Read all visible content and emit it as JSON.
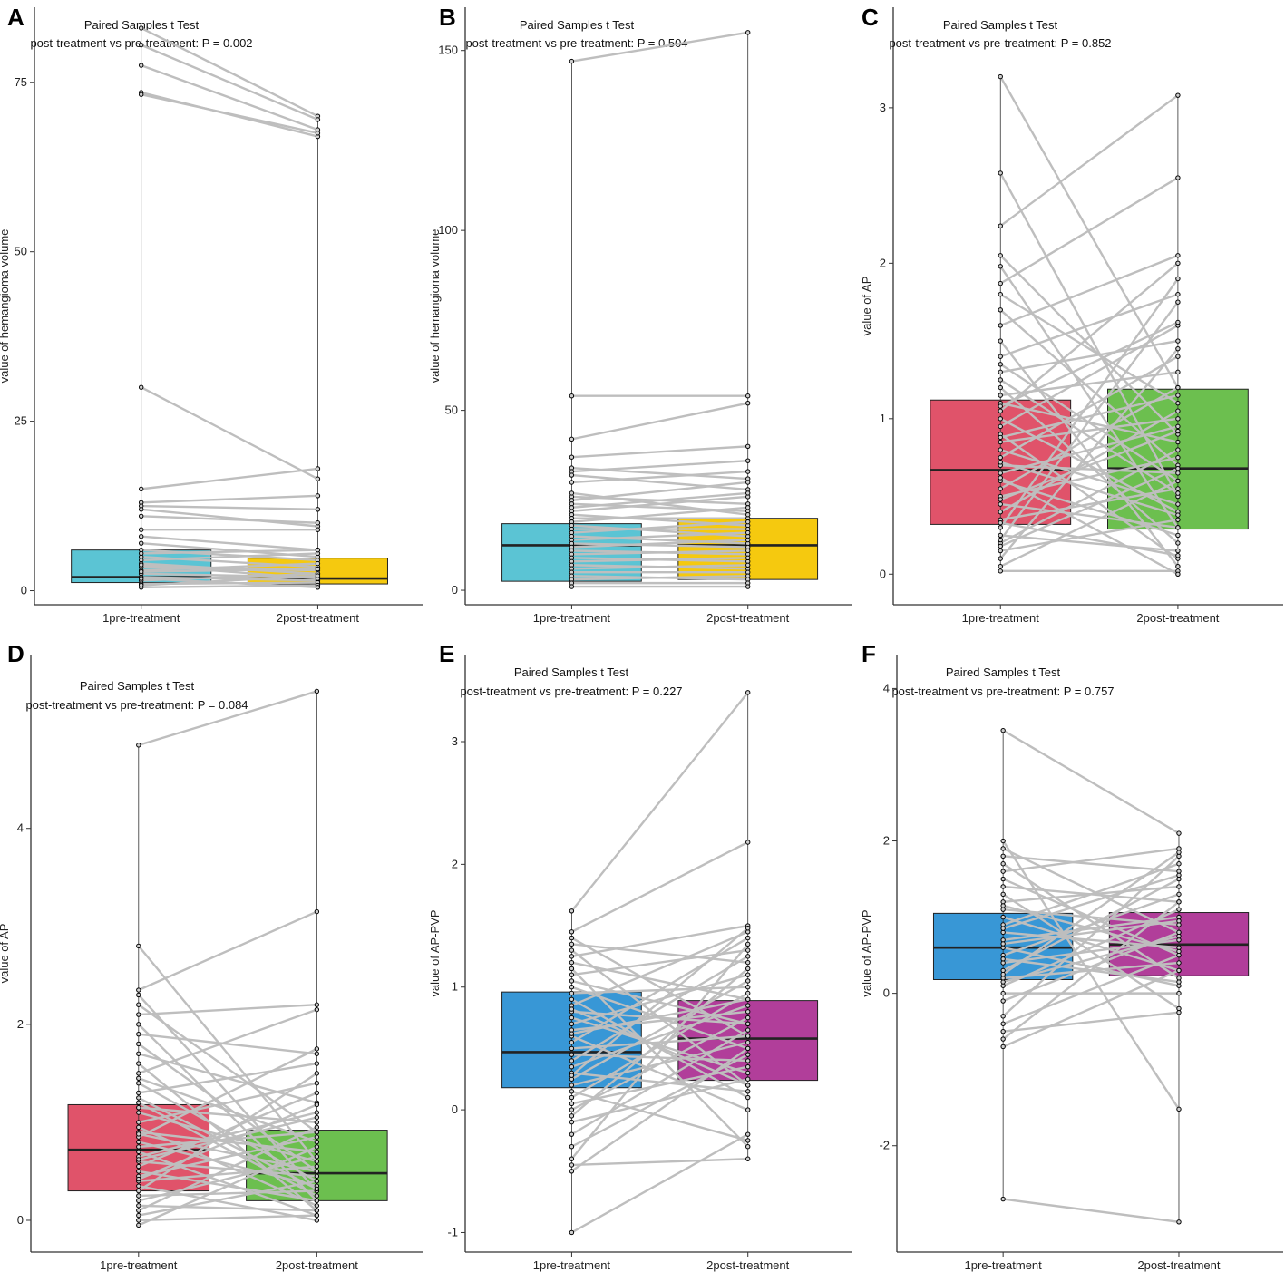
{
  "figure": {
    "colors": {
      "pair_line": "#bebebe",
      "point_stroke": "#000000",
      "box_stroke": "#222222",
      "cyan": "#5bc4d4",
      "yellow": "#f5c90f",
      "red": "#e0536a",
      "green": "#6cbf4f",
      "blue": "#3897d6",
      "magenta": "#b13e9a"
    }
  },
  "chart_data": [
    {
      "panel": "A",
      "type": "boxplot-paired",
      "ylabel": "value of hemangioma volume",
      "categories": [
        "1pre-treatment",
        "2post-treatment"
      ],
      "ylim": [
        -1,
        85
      ],
      "yticks": [
        0,
        25,
        50,
        75
      ],
      "annotation": {
        "title": "Paired Samples t Test",
        "text": "post-treatment vs pre-treatment: P = 0.002"
      },
      "boxes": [
        {
          "q1": 1.2,
          "median": 2.0,
          "q3": 6.0,
          "color": "cyan"
        },
        {
          "q1": 1.0,
          "median": 1.8,
          "q3": 4.8,
          "color": "yellow"
        }
      ],
      "pairs": [
        [
          83,
          70
        ],
        [
          80.5,
          69.5
        ],
        [
          77.5,
          68
        ],
        [
          73.5,
          67
        ],
        [
          73.2,
          67.5
        ],
        [
          30,
          16.5
        ],
        [
          15,
          18
        ],
        [
          13,
          14
        ],
        [
          12.5,
          12
        ],
        [
          12,
          9.5
        ],
        [
          11,
          10
        ],
        [
          9,
          9
        ],
        [
          8,
          6
        ],
        [
          7,
          5
        ],
        [
          6,
          4.5
        ],
        [
          5,
          3.5
        ],
        [
          4.5,
          5.5
        ],
        [
          4,
          2.5
        ],
        [
          3.5,
          3
        ],
        [
          3,
          4
        ],
        [
          2.5,
          2
        ],
        [
          2,
          1.5
        ],
        [
          1.5,
          2.5
        ],
        [
          1,
          1.2
        ],
        [
          0.5,
          0.8
        ],
        [
          5.5,
          6
        ],
        [
          3.8,
          1.8
        ],
        [
          2.8,
          3.2
        ],
        [
          1.8,
          0.5
        ],
        [
          0.8,
          2.2
        ]
      ]
    },
    {
      "panel": "B",
      "type": "boxplot-paired",
      "ylabel": "value of hemangioma volume",
      "categories": [
        "1pre-treatment",
        "2post-treatment"
      ],
      "ylim": [
        -2,
        160
      ],
      "yticks": [
        0,
        50,
        100,
        150
      ],
      "annotation": {
        "title": "Paired Samples t Test",
        "text": "post-treatment vs pre-treatment: P = 0.504"
      },
      "boxes": [
        {
          "q1": 2.5,
          "median": 12.5,
          "q3": 18.5,
          "color": "cyan"
        },
        {
          "q1": 3,
          "median": 12.5,
          "q3": 20,
          "color": "yellow"
        }
      ],
      "pairs": [
        [
          147,
          155
        ],
        [
          54,
          54
        ],
        [
          42,
          52
        ],
        [
          37,
          40
        ],
        [
          34,
          31
        ],
        [
          33,
          36
        ],
        [
          32,
          28
        ],
        [
          30,
          33
        ],
        [
          26,
          24
        ],
        [
          25,
          30
        ],
        [
          24,
          22
        ],
        [
          22,
          26
        ],
        [
          21,
          18
        ],
        [
          20,
          20
        ],
        [
          19,
          23
        ],
        [
          18,
          15
        ],
        [
          17,
          17
        ],
        [
          16,
          19
        ],
        [
          15,
          13
        ],
        [
          14,
          16
        ],
        [
          13,
          12
        ],
        [
          12,
          14
        ],
        [
          11,
          10
        ],
        [
          10,
          11
        ],
        [
          9,
          8
        ],
        [
          8,
          9
        ],
        [
          7,
          6
        ],
        [
          6,
          7
        ],
        [
          5,
          5
        ],
        [
          4,
          3
        ],
        [
          3,
          4
        ],
        [
          2,
          2
        ],
        [
          1,
          1
        ],
        [
          23,
          27
        ],
        [
          27,
          21
        ]
      ]
    },
    {
      "panel": "C",
      "type": "boxplot-paired",
      "ylabel": "value of AP",
      "categories": [
        "1pre-treatment",
        "2post-treatment"
      ],
      "ylim": [
        -0.15,
        3.6
      ],
      "yticks": [
        0,
        1,
        2,
        3
      ],
      "annotation": {
        "title": "Paired Samples t Test",
        "text": "post-treatment vs pre-treatment: P = 0.852"
      },
      "boxes": [
        {
          "q1": 0.32,
          "median": 0.67,
          "q3": 1.12,
          "color": "red"
        },
        {
          "q1": 0.29,
          "median": 0.68,
          "q3": 1.19,
          "color": "green"
        }
      ],
      "pairs": [
        [
          3.2,
          1.2
        ],
        [
          2.58,
          0.5
        ],
        [
          2.24,
          3.08
        ],
        [
          2.05,
          0.9
        ],
        [
          1.98,
          0.3
        ],
        [
          1.87,
          2.55
        ],
        [
          1.8,
          1.1
        ],
        [
          1.7,
          0.7
        ],
        [
          1.6,
          2.05
        ],
        [
          1.5,
          0.05
        ],
        [
          1.4,
          1.8
        ],
        [
          1.35,
          0.6
        ],
        [
          1.3,
          1.5
        ],
        [
          1.2,
          0.2
        ],
        [
          1.15,
          1.3
        ],
        [
          1.1,
          0.85
        ],
        [
          1.05,
          2.0
        ],
        [
          1.0,
          0.4
        ],
        [
          0.95,
          1.6
        ],
        [
          0.9,
          0.1
        ],
        [
          0.85,
          1.0
        ],
        [
          0.8,
          0.45
        ],
        [
          0.75,
          1.4
        ],
        [
          0.7,
          0.65
        ],
        [
          0.65,
          0.95
        ],
        [
          0.6,
          0.25
        ],
        [
          0.55,
          1.2
        ],
        [
          0.5,
          0.75
        ],
        [
          0.45,
          0.3
        ],
        [
          0.4,
          1.05
        ],
        [
          0.35,
          0.55
        ],
        [
          0.3,
          1.9
        ],
        [
          0.25,
          0.15
        ],
        [
          0.2,
          0.8
        ],
        [
          0.15,
          0.35
        ],
        [
          0.1,
          1.45
        ],
        [
          0.05,
          0.6
        ],
        [
          0.02,
          0.02
        ],
        [
          0.22,
          1.75
        ],
        [
          0.62,
          0.0
        ],
        [
          1.25,
          0.52
        ],
        [
          0.88,
          1.15
        ],
        [
          0.48,
          0.92
        ],
        [
          0.72,
          0.38
        ],
        [
          1.08,
          1.62
        ],
        [
          0.33,
          0.12
        ],
        [
          0.18,
          0.68
        ]
      ]
    },
    {
      "panel": "D",
      "type": "boxplot-paired",
      "ylabel": "value of AP",
      "categories": [
        "1pre-treatment",
        "2post-treatment"
      ],
      "ylim": [
        -0.25,
        5.7
      ],
      "yticks": [
        0,
        2,
        4
      ],
      "annotation": {
        "title": "Paired Samples t Test",
        "text": "post-treatment vs pre-treatment: P = 0.084"
      },
      "boxes": [
        {
          "q1": 0.3,
          "median": 0.72,
          "q3": 1.18,
          "color": "red"
        },
        {
          "q1": 0.2,
          "median": 0.48,
          "q3": 0.92,
          "color": "green"
        }
      ],
      "pairs": [
        [
          4.85,
          5.4
        ],
        [
          2.8,
          0.6
        ],
        [
          2.35,
          3.15
        ],
        [
          2.3,
          0.3
        ],
        [
          2.2,
          0.9
        ],
        [
          2.1,
          2.2
        ],
        [
          2.0,
          0.2
        ],
        [
          1.9,
          1.7
        ],
        [
          1.8,
          0.5
        ],
        [
          1.7,
          1.2
        ],
        [
          1.6,
          0.1
        ],
        [
          1.5,
          2.15
        ],
        [
          1.45,
          0.8
        ],
        [
          1.4,
          0.4
        ],
        [
          1.3,
          1.6
        ],
        [
          1.2,
          0.25
        ],
        [
          1.15,
          1.0
        ],
        [
          1.1,
          0.6
        ],
        [
          1.0,
          1.4
        ],
        [
          0.95,
          0.15
        ],
        [
          0.9,
          0.7
        ],
        [
          0.85,
          1.75
        ],
        [
          0.8,
          0.35
        ],
        [
          0.75,
          0.9
        ],
        [
          0.7,
          0.05
        ],
        [
          0.65,
          1.1
        ],
        [
          0.6,
          0.45
        ],
        [
          0.55,
          1.3
        ],
        [
          0.5,
          0.2
        ],
        [
          0.45,
          0.85
        ],
        [
          0.4,
          0.55
        ],
        [
          0.35,
          0.0
        ],
        [
          0.3,
          1.5
        ],
        [
          0.25,
          0.3
        ],
        [
          0.2,
          0.65
        ],
        [
          0.15,
          0.1
        ],
        [
          0.1,
          0.95
        ],
        [
          0.05,
          0.4
        ],
        [
          0.0,
          0.05
        ],
        [
          -0.05,
          0.75
        ],
        [
          0.62,
          1.05
        ],
        [
          1.25,
          0.32
        ],
        [
          0.42,
          1.18
        ],
        [
          0.88,
          0.5
        ]
      ]
    },
    {
      "panel": "E",
      "type": "boxplot-paired",
      "ylabel": "value of AP-PVP",
      "categories": [
        "1pre-treatment",
        "2post-treatment"
      ],
      "ylim": [
        -1.1,
        3.65
      ],
      "yticks": [
        -1,
        0,
        1,
        2,
        3
      ],
      "annotation": {
        "title": "Paired Samples t Test",
        "text": "post-treatment vs pre-treatment: P = 0.227"
      },
      "boxes": [
        {
          "q1": 0.18,
          "median": 0.47,
          "q3": 0.96,
          "color": "blue"
        },
        {
          "q1": 0.24,
          "median": 0.58,
          "q3": 0.89,
          "color": "magenta"
        }
      ],
      "pairs": [
        [
          1.62,
          3.4
        ],
        [
          1.45,
          2.18
        ],
        [
          1.4,
          0.6
        ],
        [
          1.35,
          1.2
        ],
        [
          1.3,
          0.2
        ],
        [
          1.25,
          1.5
        ],
        [
          1.2,
          0.9
        ],
        [
          1.15,
          -0.3
        ],
        [
          1.1,
          1.3
        ],
        [
          1.0,
          0.5
        ],
        [
          0.95,
          1.0
        ],
        [
          0.9,
          0.1
        ],
        [
          0.85,
          1.45
        ],
        [
          0.8,
          0.7
        ],
        [
          0.75,
          0.3
        ],
        [
          0.7,
          1.1
        ],
        [
          0.65,
          0.8
        ],
        [
          0.6,
          0.0
        ],
        [
          0.55,
          1.4
        ],
        [
          0.5,
          0.6
        ],
        [
          0.45,
          0.4
        ],
        [
          0.4,
          1.25
        ],
        [
          0.35,
          0.85
        ],
        [
          0.3,
          0.15
        ],
        [
          0.25,
          1.05
        ],
        [
          0.2,
          0.55
        ],
        [
          0.15,
          -0.25
        ],
        [
          0.1,
          0.95
        ],
        [
          0.05,
          0.35
        ],
        [
          0.0,
          0.75
        ],
        [
          -0.05,
          1.15
        ],
        [
          -0.1,
          0.25
        ],
        [
          -0.2,
          0.65
        ],
        [
          -0.3,
          0.45
        ],
        [
          -0.4,
          1.35
        ],
        [
          -0.45,
          -0.4
        ],
        [
          -0.5,
          0.5
        ],
        [
          -1.0,
          -0.2
        ],
        [
          0.62,
          0.9
        ],
        [
          0.82,
          0.2
        ],
        [
          1.05,
          0.7
        ],
        [
          0.28,
          1.48
        ]
      ]
    },
    {
      "panel": "F",
      "type": "boxplot-paired",
      "ylabel": "value of AP-PVP",
      "categories": [
        "1pre-treatment",
        "2post-treatment"
      ],
      "ylim": [
        -3.3,
        4.35
      ],
      "yticks": [
        -2,
        0,
        2,
        4
      ],
      "annotation": {
        "title": "Paired Samples t Test",
        "text": "post-treatment vs pre-treatment: P = 0.757"
      },
      "boxes": [
        {
          "q1": 0.18,
          "median": 0.6,
          "q3": 1.05,
          "color": "blue"
        },
        {
          "q1": 0.23,
          "median": 0.64,
          "q3": 1.06,
          "color": "magenta"
        }
      ],
      "pairs": [
        [
          3.45,
          2.1
        ],
        [
          2.0,
          -1.52
        ],
        [
          1.9,
          0.8
        ],
        [
          1.8,
          1.6
        ],
        [
          1.7,
          0.2
        ],
        [
          1.6,
          1.9
        ],
        [
          1.5,
          0.5
        ],
        [
          1.4,
          1.2
        ],
        [
          1.3,
          -0.2
        ],
        [
          1.2,
          1.4
        ],
        [
          1.1,
          0.9
        ],
        [
          1.0,
          0.3
        ],
        [
          0.9,
          1.7
        ],
        [
          0.8,
          0.6
        ],
        [
          0.7,
          1.0
        ],
        [
          0.6,
          0.1
        ],
        [
          0.5,
          1.3
        ],
        [
          0.4,
          0.7
        ],
        [
          0.3,
          1.5
        ],
        [
          0.2,
          0.4
        ],
        [
          0.1,
          1.1
        ],
        [
          0.0,
          0.0
        ],
        [
          -0.1,
          0.8
        ],
        [
          -0.3,
          1.8
        ],
        [
          -0.4,
          0.5
        ],
        [
          -0.5,
          -0.25
        ],
        [
          -0.6,
          1.2
        ],
        [
          -0.7,
          0.3
        ],
        [
          0.65,
          0.95
        ],
        [
          0.45,
          0.15
        ],
        [
          0.85,
          1.55
        ],
        [
          1.15,
          0.55
        ],
        [
          0.25,
          1.85
        ],
        [
          0.15,
          0.75
        ],
        [
          -2.7,
          -3.0
        ]
      ]
    }
  ]
}
